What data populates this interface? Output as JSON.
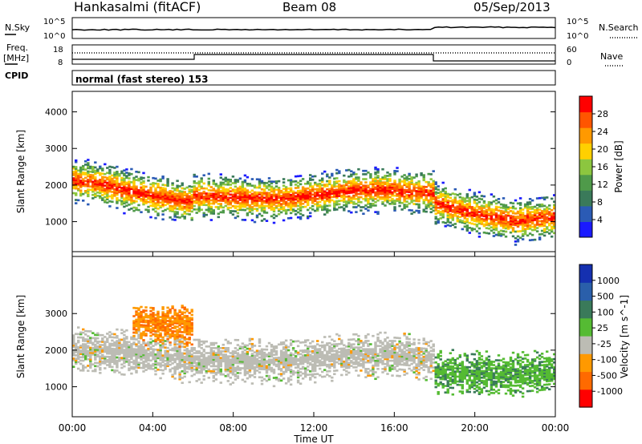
{
  "header": {
    "station": "Hankasalmi (fitACF)",
    "beam": "Beam 08",
    "date": "05/Sep/2013"
  },
  "noise_panel": {
    "left_label": "N.Sky",
    "right_label": "N.Search",
    "left_ticks": [
      "10^5",
      "10^0"
    ],
    "right_ticks": [
      "10^5",
      "10^0"
    ]
  },
  "freq_panel": {
    "left_label_1": "Freq.",
    "left_label_2": "[MHz]",
    "right_label": "Nave",
    "left_ticks": [
      "18",
      "8"
    ],
    "right_ticks": [
      "60",
      "0"
    ]
  },
  "cpid": {
    "label": "CPID",
    "value": "normal (fast stereo) 153"
  },
  "colors": {
    "power_scale": [
      "#1a1aff",
      "#2b5bb5",
      "#3a7a5a",
      "#4f9a4a",
      "#8cc63f",
      "#ffd000",
      "#ff9900",
      "#ff5500",
      "#ff0000"
    ],
    "velocity_scale": [
      "#1530b0",
      "#2a5faa",
      "#3a7a5a",
      "#55bb33",
      "#bcbcb4",
      "#ff9900",
      "#ff6a00",
      "#ff0000"
    ]
  },
  "chart_data": [
    {
      "type": "heatmap",
      "title": "Power",
      "xlabel": "Time UT",
      "ylabel": "Slant Range [km]",
      "colorbar_label": "Power [dB]",
      "colorbar_ticks": [
        "4",
        "8",
        "12",
        "16",
        "20",
        "24",
        "28"
      ],
      "xlim": [
        0,
        24
      ],
      "ylim": [
        180,
        4560
      ],
      "y_ticks": [
        1000,
        2000,
        3000,
        4000
      ],
      "x_ticks": [
        "00:00",
        "04:00",
        "08:00",
        "12:00",
        "16:00",
        "20:00",
        "00:00"
      ],
      "echo_bands": [
        {
          "t": [
            0,
            1,
            2,
            3,
            4,
            5,
            6
          ],
          "center_km": [
            2100,
            2050,
            1950,
            1800,
            1700,
            1600,
            1500
          ],
          "power_db": 24
        },
        {
          "t": [
            6,
            8,
            10,
            12,
            14,
            16,
            18
          ],
          "center_km": [
            1700,
            1650,
            1600,
            1700,
            1850,
            1850,
            1750
          ],
          "power_db": 26
        },
        {
          "t": [
            18,
            20,
            22,
            24
          ],
          "center_km": [
            1500,
            1200,
            1000,
            1100
          ],
          "power_db": 28
        }
      ]
    },
    {
      "type": "heatmap",
      "title": "Velocity",
      "xlabel": "Time UT",
      "ylabel": "Slant Range [km]",
      "colorbar_label": "Velocity [m s^-1]",
      "colorbar_ticks": [
        "1000",
        "500",
        "100",
        "25",
        "-25",
        "-100",
        "-500",
        "-1000"
      ],
      "xlim": [
        0,
        24
      ],
      "ylim": [
        180,
        4560
      ],
      "y_ticks": [
        1000,
        2000,
        3000
      ],
      "x_ticks": [
        "00:00",
        "04:00",
        "08:00",
        "12:00",
        "16:00",
        "20:00",
        "00:00"
      ],
      "echo_bands": [
        {
          "t": [
            0,
            2,
            4,
            6,
            8,
            10,
            12,
            14,
            16,
            18
          ],
          "center_km": [
            2000,
            1950,
            1850,
            1700,
            1700,
            1650,
            1750,
            1850,
            1850,
            1750
          ],
          "velocity_ms": 0
        },
        {
          "t": [
            3,
            4,
            5,
            6
          ],
          "center_km": [
            2800,
            2750,
            2700,
            2650
          ],
          "velocity_ms": -100
        },
        {
          "t": [
            18,
            20,
            22,
            24
          ],
          "center_km": [
            1400,
            1350,
            1300,
            1400
          ],
          "velocity_ms": 100
        }
      ]
    }
  ],
  "time_axis_label": "Time UT"
}
